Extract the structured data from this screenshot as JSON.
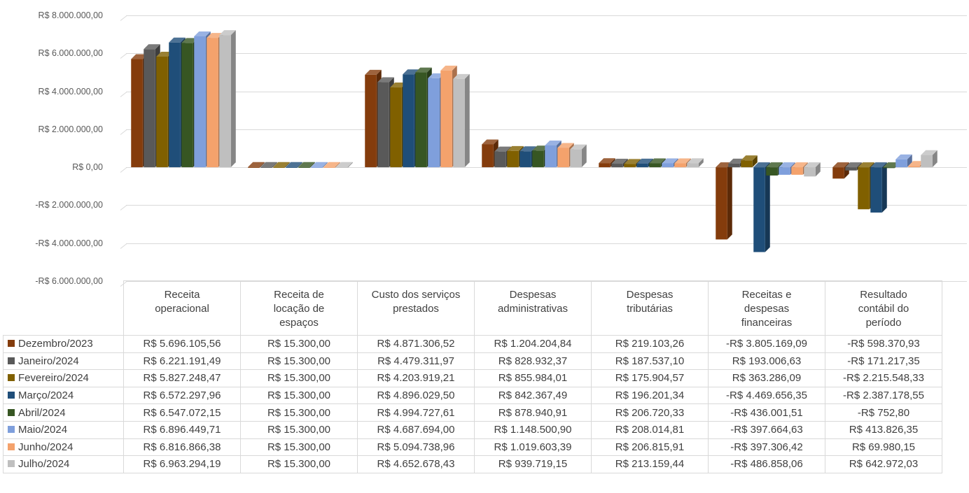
{
  "chart_data": {
    "type": "bar",
    "title": "",
    "xlabel": "",
    "ylabel": "",
    "ylim": [
      -6000000,
      8000000
    ],
    "yticks": [
      8000000,
      6000000,
      4000000,
      2000000,
      0,
      -2000000,
      -4000000,
      -6000000
    ],
    "ytick_labels": [
      "R$ 8.000.000,00",
      "R$ 6.000.000,00",
      "R$ 4.000.000,00",
      "R$ 2.000.000,00",
      "R$ 0,00",
      "-R$ 2.000.000,00",
      "-R$ 4.000.000,00",
      "-R$ 6.000.000,00"
    ],
    "grid": true,
    "legend": "data-table",
    "categories": [
      "Receita operacional",
      "Receita de locação de espaços",
      "Custo dos serviços prestados",
      "Despesas administrativas",
      "Despesas tributárias",
      "Receitas e despesas financeiras",
      "Resultado contábil do período"
    ],
    "category_lines": [
      [
        "Receita",
        "operacional"
      ],
      [
        "Receita de",
        "locação de",
        "espaços"
      ],
      [
        "Custo dos serviços",
        "prestados"
      ],
      [
        "Despesas",
        "administrativas"
      ],
      [
        "Despesas",
        "tributárias"
      ],
      [
        "Receitas e",
        "despesas",
        "financeiras"
      ],
      [
        "Resultado",
        "contábil do",
        "período"
      ]
    ],
    "series": [
      {
        "name": "Dezembro/2023",
        "color": "#843c0c",
        "values": [
          5696105.56,
          15300.0,
          4871306.52,
          1204204.84,
          219103.26,
          -3805169.09,
          -598370.93
        ],
        "labels": [
          "R$ 5.696.105,56",
          "R$ 15.300,00",
          "R$ 4.871.306,52",
          "R$ 1.204.204,84",
          "R$ 219.103,26",
          "-R$ 3.805.169,09",
          "-R$ 598.370,93"
        ]
      },
      {
        "name": "Janeiro/2024",
        "color": "#595959",
        "values": [
          6221191.49,
          15300.0,
          4479311.97,
          828932.37,
          187537.1,
          193006.63,
          -171217.35
        ],
        "labels": [
          "R$ 6.221.191,49",
          "R$ 15.300,00",
          "R$ 4.479.311,97",
          "R$ 828.932,37",
          "R$ 187.537,10",
          "R$ 193.006,63",
          "-R$ 171.217,35"
        ]
      },
      {
        "name": "Fevereiro/2024",
        "color": "#806000",
        "values": [
          5827248.47,
          15300.0,
          4203919.21,
          855984.01,
          175904.57,
          363286.09,
          -2215548.33
        ],
        "labels": [
          "R$ 5.827.248,47",
          "R$ 15.300,00",
          "R$ 4.203.919,21",
          "R$ 855.984,01",
          "R$ 175.904,57",
          "R$ 363.286,09",
          "-R$ 2.215.548,33"
        ]
      },
      {
        "name": "Março/2024",
        "color": "#1f4e79",
        "values": [
          6572297.96,
          15300.0,
          4896029.5,
          842367.49,
          196201.34,
          -4469656.35,
          -2387178.55
        ],
        "labels": [
          "R$ 6.572.297,96",
          "R$ 15.300,00",
          "R$ 4.896.029,50",
          "R$ 842.367,49",
          "R$ 196.201,34",
          "-R$ 4.469.656,35",
          "-R$ 2.387.178,55"
        ]
      },
      {
        "name": "Abril/2024",
        "color": "#375623",
        "values": [
          6547072.15,
          15300.0,
          4994727.61,
          878940.91,
          206720.33,
          -436001.51,
          -752.8
        ],
        "labels": [
          "R$ 6.547.072,15",
          "R$ 15.300,00",
          "R$ 4.994.727,61",
          "R$ 878.940,91",
          "R$ 206.720,33",
          "-R$ 436.001,51",
          "-R$ 752,80"
        ]
      },
      {
        "name": "Maio/2024",
        "color": "#7f9fdc",
        "values": [
          6896449.71,
          15300.0,
          4687694.0,
          1148500.9,
          208014.81,
          -397664.63,
          413826.35
        ],
        "labels": [
          "R$ 6.896.449,71",
          "R$ 15.300,00",
          "R$ 4.687.694,00",
          "R$ 1.148.500,90",
          "R$ 208.014,81",
          "-R$ 397.664,63",
          "R$ 413.826,35"
        ]
      },
      {
        "name": "Junho/2024",
        "color": "#f4a26c",
        "values": [
          6816866.38,
          15300.0,
          5094738.96,
          1019603.39,
          206815.91,
          -397306.42,
          69980.15
        ],
        "labels": [
          "R$ 6.816.866,38",
          "R$ 15.300,00",
          "R$ 5.094.738,96",
          "R$ 1.019.603,39",
          "R$ 206.815,91",
          "-R$ 397.306,42",
          "R$ 69.980,15"
        ]
      },
      {
        "name": "Julho/2024",
        "color": "#bfbfbf",
        "values": [
          6963294.19,
          15300.0,
          4652678.43,
          939719.15,
          213159.44,
          -486858.06,
          642972.03
        ],
        "labels": [
          "R$ 6.963.294,19",
          "R$ 15.300,00",
          "R$ 4.652.678,43",
          "R$ 939.719,15",
          "R$ 213.159,44",
          "-R$ 486.858,06",
          "R$ 642.972,03"
        ]
      }
    ]
  }
}
